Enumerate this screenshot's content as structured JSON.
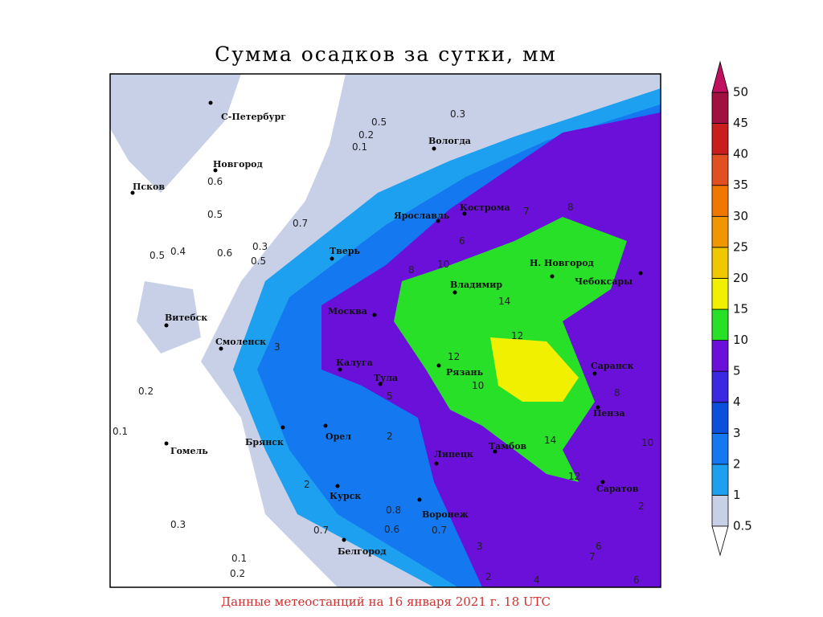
{
  "title": "Сумма осадков за сутки, мм",
  "footer": "Данные метеостанций на 16 января 2021 г. 18 UTC",
  "cities": [
    "С-Петербург",
    "Новгород",
    "Псков",
    "Витебск",
    "Смоленск",
    "Гомель",
    "Брянск",
    "Орел",
    "Курск",
    "Белгород",
    "Воронеж",
    "Липецк",
    "Тамбов",
    "Тула",
    "Калуга",
    "Москва",
    "Тверь",
    "Ярославль",
    "Кострома",
    "Вологда",
    "Владимир",
    "Н. Новгород",
    "Чебоксары",
    "Рязань",
    "Саранск",
    "Пенза",
    "Саратов"
  ],
  "station_values": [
    0.3,
    0.5,
    0.2,
    0.1,
    0.6,
    0.5,
    0.7,
    0.5,
    0.4,
    0.6,
    0.3,
    0.5,
    7,
    8,
    6,
    8,
    10,
    14,
    12,
    12,
    10,
    14,
    12,
    3,
    5,
    2,
    2,
    3,
    2,
    4,
    6,
    7,
    6,
    10,
    8,
    2,
    0.8,
    0.6,
    0.7,
    0.7,
    0.1,
    0.2,
    0.2,
    0.1,
    0.3
  ],
  "colorbar": {
    "levels": [
      0.5,
      1,
      2,
      3,
      4,
      5,
      10,
      15,
      20,
      25,
      30,
      35,
      40,
      45,
      50
    ],
    "colors": [
      "#c8d0e8",
      "#1ea0f0",
      "#1478f0",
      "#0a50dc",
      "#3c28e0",
      "#6a10d8",
      "#28e028",
      "#f0f000",
      "#f0c800",
      "#f09600",
      "#f07800",
      "#e05020",
      "#c81e1e",
      "#a01040"
    ],
    "over_color": "#c01060"
  }
}
